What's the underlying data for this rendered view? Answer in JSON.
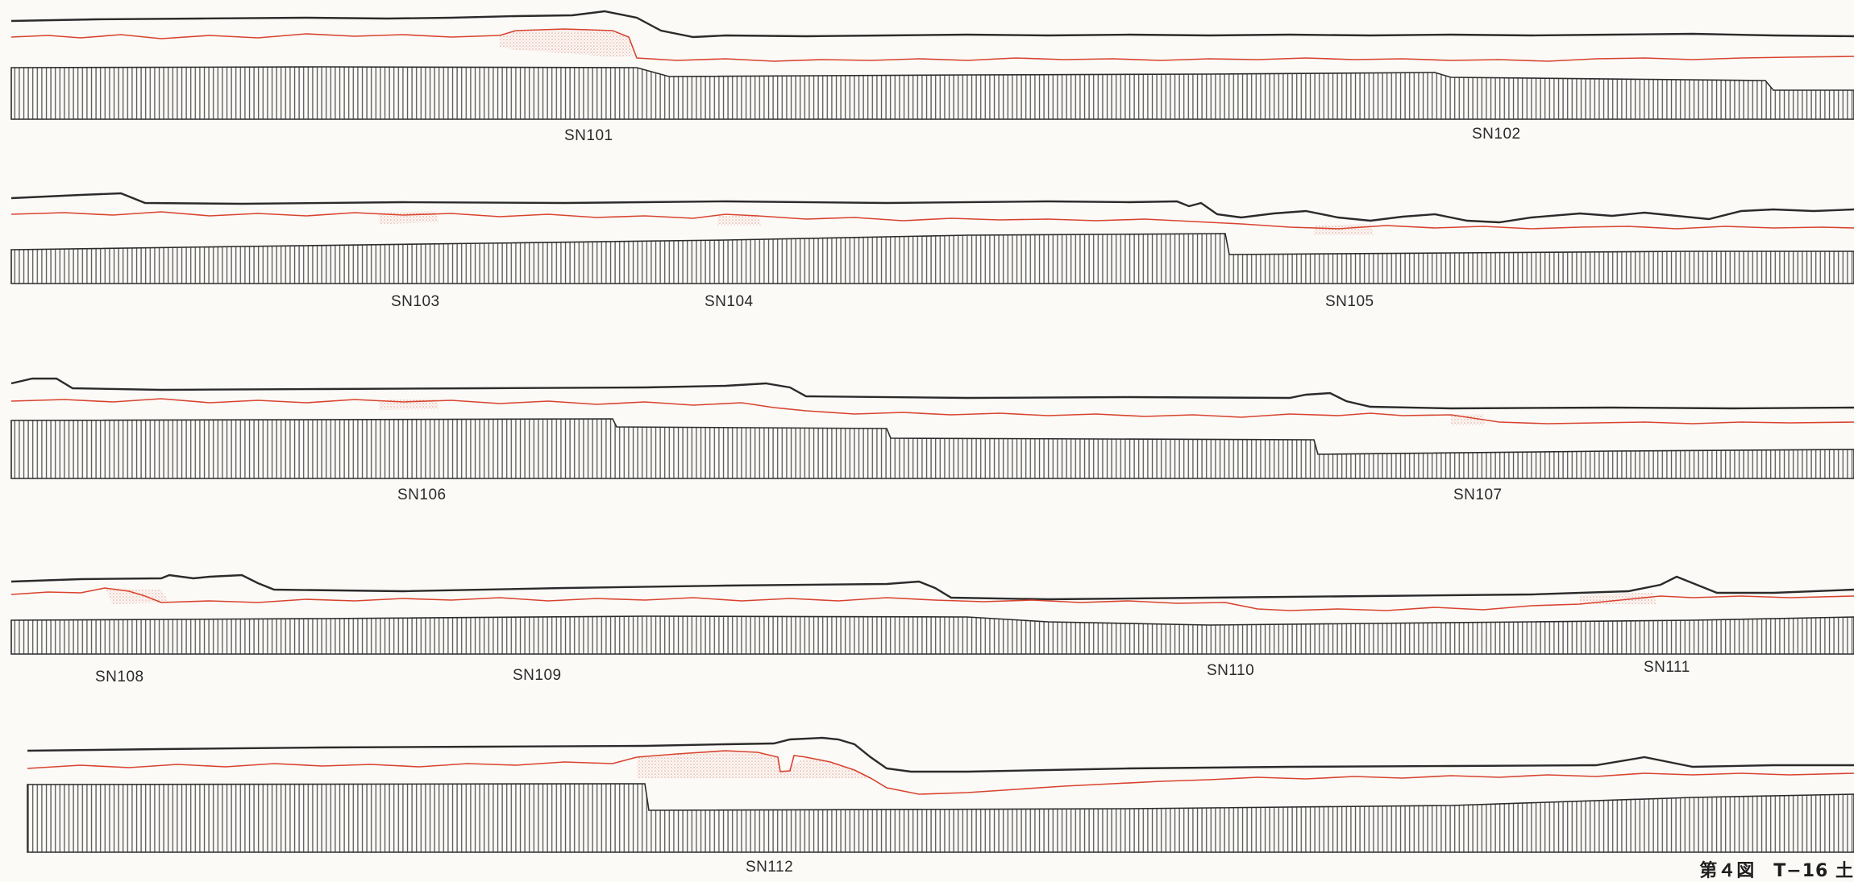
{
  "labels": {
    "sn101": "SN101",
    "sn102": "SN102",
    "sn103": "SN103",
    "sn104": "SN104",
    "sn105": "SN105",
    "sn106": "SN106",
    "sn107": "SN107",
    "sn108": "SN108",
    "sn109": "SN109",
    "sn110": "SN110",
    "sn111": "SN111",
    "sn112": "SN112"
  },
  "caption": "第４図　T−16 土",
  "colors": {
    "ground_line": "#2b2b2b",
    "red_layer": "#d8432e",
    "stipple": "#e8a69a",
    "hatch": "#555555",
    "paper": "#fbfaf7"
  }
}
